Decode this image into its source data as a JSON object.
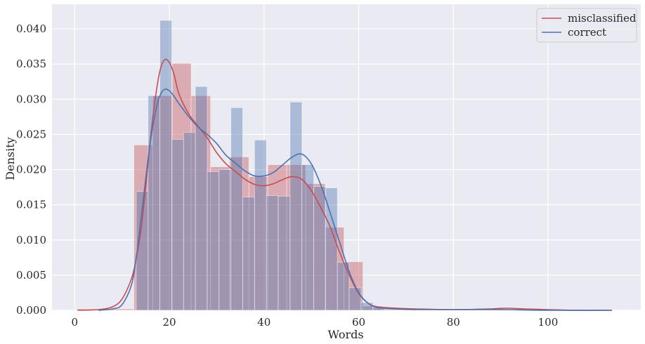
{
  "chart_data": {
    "type": "histogram",
    "xlabel": "Words",
    "ylabel": "Density",
    "xlim": [
      -4.8,
      119.6
    ],
    "ylim": [
      0,
      0.0435
    ],
    "xticks": [
      0,
      20,
      40,
      60,
      80,
      100
    ],
    "yticks": [
      0.0,
      0.005,
      0.01,
      0.015,
      0.02,
      0.025,
      0.03,
      0.035,
      0.04
    ],
    "ytick_labels": [
      "0.000",
      "0.005",
      "0.010",
      "0.015",
      "0.020",
      "0.025",
      "0.030",
      "0.035",
      "0.040"
    ],
    "grid": true,
    "legend_position": "top-right",
    "series": [
      {
        "name": "misclassified",
        "color": "#c44e52",
        "bins": [
          {
            "x0": 0.5,
            "x1": 8.6,
            "y": 0.0002
          },
          {
            "x0": 8.6,
            "x1": 12.5,
            "y": 0.0002
          },
          {
            "x0": 12.5,
            "x1": 16.5,
            "y": 0.0235
          },
          {
            "x0": 16.5,
            "x1": 20.6,
            "y": 0.0305
          },
          {
            "x0": 20.6,
            "x1": 24.6,
            "y": 0.0351
          },
          {
            "x0": 24.6,
            "x1": 28.7,
            "y": 0.0305
          },
          {
            "x0": 28.7,
            "x1": 32.7,
            "y": 0.0204
          },
          {
            "x0": 32.7,
            "x1": 36.8,
            "y": 0.0218
          },
          {
            "x0": 36.8,
            "x1": 40.8,
            "y": 0.019
          },
          {
            "x0": 40.8,
            "x1": 44.8,
            "y": 0.0207
          },
          {
            "x0": 44.8,
            "x1": 48.8,
            "y": 0.0207
          },
          {
            "x0": 48.8,
            "x1": 52.9,
            "y": 0.018
          },
          {
            "x0": 52.9,
            "x1": 56.9,
            "y": 0.0118
          },
          {
            "x0": 56.9,
            "x1": 60.9,
            "y": 0.0069
          },
          {
            "x0": 60.9,
            "x1": 64.9,
            "y": 0.0006
          },
          {
            "x0": 64.9,
            "x1": 91.2,
            "y": 0.0002
          }
        ],
        "kde": {
          "x": [
            0.6,
            5,
            8,
            10,
            12,
            13,
            14,
            15,
            16,
            17,
            18,
            19,
            20,
            21,
            22,
            24,
            26,
            28,
            30,
            32,
            34,
            36,
            38,
            40,
            42,
            44,
            46,
            48,
            50,
            52,
            54,
            56,
            58,
            60,
            62,
            64,
            68,
            72,
            80,
            88,
            91,
            95,
            100,
            106,
            113.5
          ],
          "y": [
            0.0,
            0.0001,
            0.0005,
            0.0016,
            0.0045,
            0.0074,
            0.0115,
            0.0175,
            0.0244,
            0.03,
            0.034,
            0.0356,
            0.0352,
            0.0335,
            0.0308,
            0.028,
            0.0262,
            0.0245,
            0.0224,
            0.0208,
            0.0197,
            0.0186,
            0.0179,
            0.0177,
            0.018,
            0.0186,
            0.019,
            0.0186,
            0.017,
            0.0146,
            0.0118,
            0.0082,
            0.005,
            0.0024,
            0.001,
            0.0005,
            0.0003,
            0.0002,
            0.0001,
            0.0002,
            0.0003,
            0.0002,
            0.0001,
            0.0,
            0.0
          ]
        }
      },
      {
        "name": "correct",
        "color": "#4c72b0",
        "bins": [
          {
            "x0": 13.0,
            "x1": 15.5,
            "y": 0.0169
          },
          {
            "x0": 15.5,
            "x1": 18.0,
            "y": 0.0305
          },
          {
            "x0": 18.0,
            "x1": 20.5,
            "y": 0.0412
          },
          {
            "x0": 20.5,
            "x1": 23.0,
            "y": 0.0243
          },
          {
            "x0": 23.0,
            "x1": 25.5,
            "y": 0.0253
          },
          {
            "x0": 25.5,
            "x1": 28.0,
            "y": 0.0318
          },
          {
            "x0": 28.0,
            "x1": 30.5,
            "y": 0.0197
          },
          {
            "x0": 30.5,
            "x1": 33.0,
            "y": 0.02
          },
          {
            "x0": 33.0,
            "x1": 35.5,
            "y": 0.0288
          },
          {
            "x0": 35.5,
            "x1": 38.0,
            "y": 0.0161
          },
          {
            "x0": 38.0,
            "x1": 40.5,
            "y": 0.0242
          },
          {
            "x0": 40.5,
            "x1": 43.0,
            "y": 0.0163
          },
          {
            "x0": 43.0,
            "x1": 45.5,
            "y": 0.0162
          },
          {
            "x0": 45.5,
            "x1": 48.0,
            "y": 0.0296
          },
          {
            "x0": 48.0,
            "x1": 50.5,
            "y": 0.0207
          },
          {
            "x0": 50.5,
            "x1": 53.0,
            "y": 0.0176
          },
          {
            "x0": 53.0,
            "x1": 55.5,
            "y": 0.0174
          },
          {
            "x0": 55.5,
            "x1": 58.0,
            "y": 0.0068
          },
          {
            "x0": 58.0,
            "x1": 60.5,
            "y": 0.0032
          },
          {
            "x0": 60.5,
            "x1": 63.0,
            "y": 0.0011
          },
          {
            "x0": 63.0,
            "x1": 65.5,
            "y": 0.0004
          }
        ],
        "kde": {
          "x": [
            5,
            8,
            10,
            12,
            13,
            14,
            15,
            16,
            17,
            18,
            19,
            20,
            21,
            22,
            24,
            26,
            28,
            30,
            32,
            34,
            36,
            38,
            40,
            42,
            44,
            46,
            48,
            50,
            52,
            54,
            56,
            58,
            60,
            62,
            64,
            68,
            72,
            80,
            90,
            100,
            113.5
          ],
          "y": [
            0.0,
            0.0002,
            0.0008,
            0.0036,
            0.0075,
            0.0129,
            0.0187,
            0.024,
            0.028,
            0.0305,
            0.0314,
            0.0312,
            0.0304,
            0.0294,
            0.0276,
            0.0261,
            0.025,
            0.0237,
            0.022,
            0.0209,
            0.0198,
            0.0191,
            0.0191,
            0.0196,
            0.0207,
            0.0218,
            0.0222,
            0.0208,
            0.0178,
            0.0138,
            0.0096,
            0.0055,
            0.0025,
            0.001,
            0.0004,
            0.0002,
            0.0001,
            0.0001,
            0.0001,
            0.0,
            0.0
          ]
        }
      }
    ]
  }
}
